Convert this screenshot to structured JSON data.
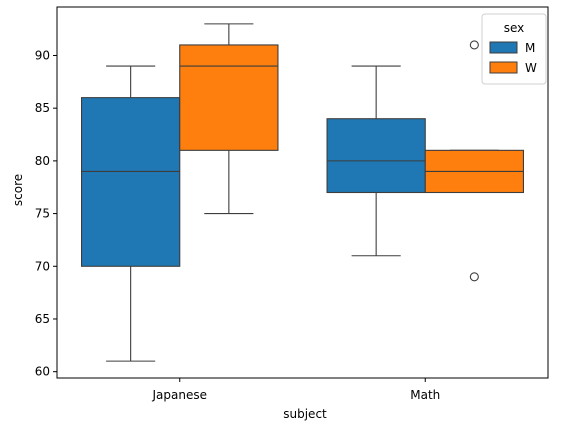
{
  "chart_data": {
    "type": "box",
    "xlabel": "subject",
    "ylabel": "score",
    "categories": [
      "Japanese",
      "Math"
    ],
    "ylim": [
      59.4,
      94.6
    ],
    "yticks": [
      60,
      65,
      70,
      75,
      80,
      85,
      90
    ],
    "grid": false,
    "legend": {
      "title": "sex",
      "placement": "top-right",
      "entries": [
        "M",
        "W"
      ]
    },
    "series": [
      {
        "name": "M",
        "color": "#1f77b4",
        "boxes": [
          {
            "category": "Japanese",
            "whisker_low": 61,
            "q1": 70,
            "median": 79,
            "q3": 86,
            "whisker_high": 89,
            "outliers": []
          },
          {
            "category": "Math",
            "whisker_low": 71,
            "q1": 77,
            "median": 80,
            "q3": 84,
            "whisker_high": 89,
            "outliers": []
          }
        ]
      },
      {
        "name": "W",
        "color": "#ff7f0e",
        "boxes": [
          {
            "category": "Japanese",
            "whisker_low": 75,
            "q1": 81,
            "median": 89,
            "q3": 91,
            "whisker_high": 93,
            "outliers": []
          },
          {
            "category": "Math",
            "whisker_low": 77,
            "q1": 77,
            "median": 79,
            "q3": 81,
            "whisker_high": 81,
            "outliers": [
              69,
              91
            ]
          }
        ]
      }
    ]
  }
}
